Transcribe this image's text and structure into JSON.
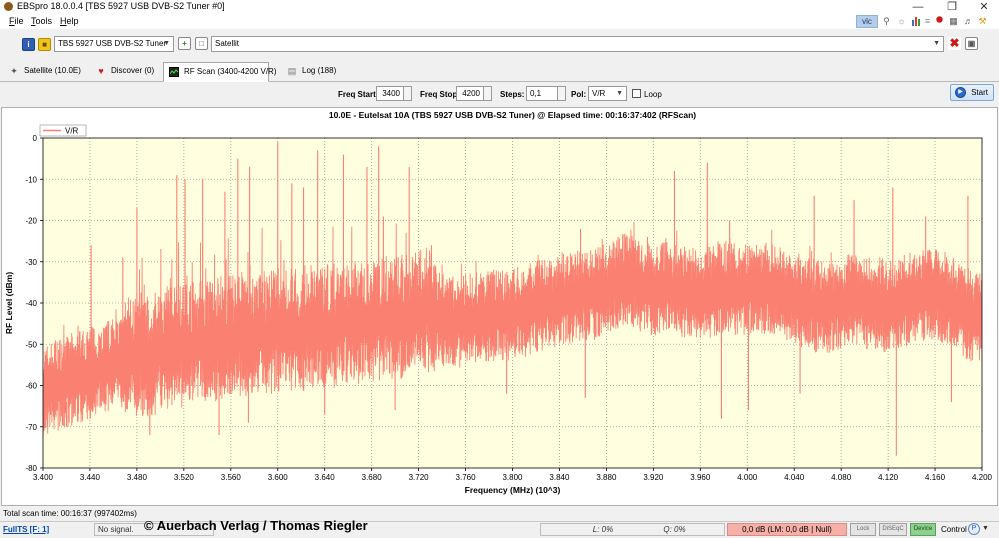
{
  "window": {
    "title": "EBSpro 18.0.0.4 [TBS 5927 USB DVB-S2 Tuner #0]",
    "controls": [
      "—",
      "❐",
      "✕"
    ]
  },
  "menu": [
    "File",
    "Tools",
    "Help"
  ],
  "toolbar_right": {
    "vlc_label": "vlc"
  },
  "tuner": {
    "device": "TBS 5927 USB DVB-S2 Tuner",
    "source": "Satellit"
  },
  "tabs": [
    {
      "label": "Satellite (10.0E)",
      "icon": "satellite-icon"
    },
    {
      "label": "Discover (0)",
      "icon": "heart-icon"
    },
    {
      "label": "RF Scan (3400-4200 V/R)",
      "icon": "scan-icon",
      "active": true
    },
    {
      "label": "Log (188)",
      "icon": "log-icon"
    }
  ],
  "params": {
    "freq_start_label": "Freq Start:",
    "freq_start": "3400",
    "freq_stop_label": "Freq Stop:",
    "freq_stop": "4200",
    "steps_label": "Steps:",
    "steps": "0,1",
    "pol_label": "Pol:",
    "pol": "V/R",
    "loop_label": "Loop",
    "loop_checked": false,
    "start_label": "Start"
  },
  "chart_data": {
    "type": "line",
    "title": "10.0E - Eutelsat 10A (TBS 5927 USB DVB-S2 Tuner) @ Elapsed time: 00:16:37:402 (RFScan)",
    "xlabel": "Frequency (MHz) (10^3)",
    "ylabel": "RF Level (dBm)",
    "xlim": [
      3.4,
      4.2
    ],
    "ylim": [
      -80,
      0
    ],
    "xticks": [
      "3.400",
      "3.440",
      "3.480",
      "3.520",
      "3.560",
      "3.600",
      "3.640",
      "3.680",
      "3.720",
      "3.760",
      "3.800",
      "3.840",
      "3.880",
      "3.920",
      "3.960",
      "4.000",
      "4.040",
      "4.080",
      "4.120",
      "4.160",
      "4.200"
    ],
    "yticks": [
      "0",
      "-10",
      "-20",
      "-30",
      "-40",
      "-50",
      "-60",
      "-70",
      "-80"
    ],
    "grid": true,
    "legend": "top-left",
    "background": "#ffffe0",
    "series": [
      {
        "name": "V/R",
        "color": "#fa8072",
        "x": [
          3.4,
          3.41,
          3.42,
          3.43,
          3.44,
          3.45,
          3.46,
          3.47,
          3.48,
          3.49,
          3.5,
          3.51,
          3.52,
          3.53,
          3.54,
          3.55,
          3.56,
          3.57,
          3.58,
          3.59,
          3.6,
          3.61,
          3.62,
          3.63,
          3.64,
          3.65,
          3.66,
          3.67,
          3.68,
          3.69,
          3.7,
          3.71,
          3.72,
          3.73,
          3.74,
          3.75,
          3.76,
          3.77,
          3.78,
          3.79,
          3.8,
          3.81,
          3.82,
          3.83,
          3.84,
          3.85,
          3.86,
          3.87,
          3.88,
          3.89,
          3.9,
          3.91,
          3.92,
          3.93,
          3.94,
          3.95,
          3.96,
          3.97,
          3.98,
          3.99,
          4.0,
          4.01,
          4.02,
          4.03,
          4.04,
          4.05,
          4.06,
          4.07,
          4.08,
          4.09,
          4.1,
          4.11,
          4.12,
          4.13,
          4.14,
          4.15,
          4.16,
          4.17,
          4.18,
          4.19,
          4.2
        ],
        "values": [
          -62,
          -60,
          -59,
          -58,
          -57,
          -56,
          -55,
          -54,
          -53,
          -53,
          -52,
          -51,
          -51,
          -50,
          -50,
          -49,
          -49,
          -48,
          -48,
          -48,
          -47,
          -47,
          -47,
          -46,
          -46,
          -46,
          -45,
          -45,
          -45,
          -44,
          -44,
          -44,
          -43,
          -42,
          -44,
          -45,
          -44,
          -44,
          -43,
          -43,
          -43,
          -42,
          -41,
          -40,
          -40,
          -39,
          -38,
          -38,
          -37,
          -35,
          -34,
          -36,
          -37,
          -36,
          -37,
          -38,
          -38,
          -37,
          -36,
          -37,
          -37,
          -36,
          -37,
          -38,
          -39,
          -40,
          -41,
          -41,
          -40,
          -39,
          -40,
          -40,
          -41,
          -40,
          -39,
          -38,
          -38,
          -39,
          -41,
          -43,
          -43
        ],
        "peaks": [
          {
            "x": 3.441,
            "y": -26
          },
          {
            "x": 3.468,
            "y": -29
          },
          {
            "x": 3.48,
            "y": -17
          },
          {
            "x": 3.514,
            "y": -9
          },
          {
            "x": 3.521,
            "y": -10
          },
          {
            "x": 3.536,
            "y": -10
          },
          {
            "x": 3.555,
            "y": -13
          },
          {
            "x": 3.566,
            "y": -5
          },
          {
            "x": 3.576,
            "y": -7
          },
          {
            "x": 3.6,
            "y": -1
          },
          {
            "x": 3.612,
            "y": -11
          },
          {
            "x": 3.622,
            "y": -12
          },
          {
            "x": 3.634,
            "y": -3
          },
          {
            "x": 3.656,
            "y": -4
          },
          {
            "x": 3.676,
            "y": -7
          },
          {
            "x": 3.686,
            "y": -2
          },
          {
            "x": 3.69,
            "y": -19
          },
          {
            "x": 3.712,
            "y": -7
          },
          {
            "x": 3.731,
            "y": -26
          },
          {
            "x": 3.858,
            "y": -22
          },
          {
            "x": 3.89,
            "y": -24
          },
          {
            "x": 3.915,
            "y": -24
          },
          {
            "x": 3.938,
            "y": -8
          },
          {
            "x": 3.966,
            "y": -6
          },
          {
            "x": 3.985,
            "y": -20
          },
          {
            "x": 4.057,
            "y": -14
          },
          {
            "x": 4.091,
            "y": -15
          },
          {
            "x": 4.124,
            "y": -12
          },
          {
            "x": 4.152,
            "y": -19
          },
          {
            "x": 4.188,
            "y": -14
          }
        ],
        "dips": [
          {
            "x": 3.42,
            "y": -70
          },
          {
            "x": 3.491,
            "y": -72
          },
          {
            "x": 3.55,
            "y": -72
          },
          {
            "x": 3.575,
            "y": -69
          },
          {
            "x": 3.64,
            "y": -67
          },
          {
            "x": 3.7,
            "y": -66
          },
          {
            "x": 3.795,
            "y": -62
          },
          {
            "x": 3.862,
            "y": -63
          },
          {
            "x": 3.978,
            "y": -68
          },
          {
            "x": 4.001,
            "y": -66
          },
          {
            "x": 4.045,
            "y": -62
          },
          {
            "x": 4.127,
            "y": -77
          },
          {
            "x": 4.174,
            "y": -64
          }
        ]
      }
    ]
  },
  "status": {
    "scan_time": "Total scan time: 00:16:37 (997402ms)",
    "fullts": "FullTS [F: 1]",
    "signal": "No signal.",
    "copyright": "© Auerbach Verlag / Thomas Riegler",
    "l_value": "L: 0%",
    "q_value": "Q: 0%",
    "db_value": "0,0 dB (LM: 0,0 dB | Null)",
    "lock": "Lock",
    "diseqc": "DiSEqC",
    "device": "Device",
    "control": "Control"
  }
}
